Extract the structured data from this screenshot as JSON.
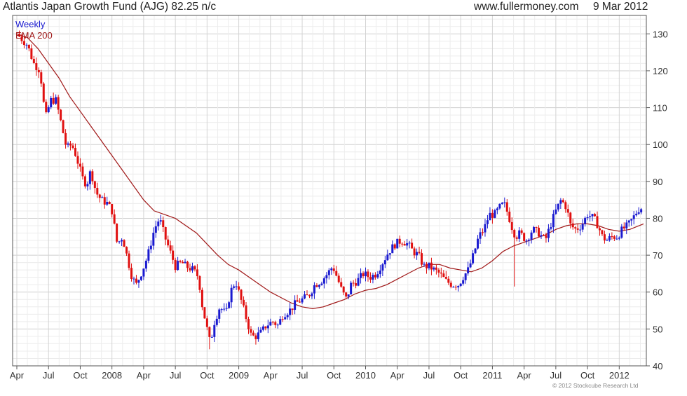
{
  "header": {
    "title": "Atlantis Japan Growth Fund (AJG) 82.25 n/c",
    "site": "www.fullermoney.com",
    "date": "9 Mar 2012"
  },
  "legend": {
    "weekly": "Weekly",
    "ema": "EMA 200"
  },
  "footer": {
    "copyright": "© 2012 Stockcube Research Ltd"
  },
  "colors": {
    "up": "#1a1ad0",
    "down": "#e01010",
    "ema": "#a01818",
    "grid": "#d8d8d8",
    "frame": "#555555"
  },
  "chart_data": {
    "type": "candlestick",
    "title": "Atlantis Japan Growth Fund (AJG) 82.25 n/c",
    "xlabel": "",
    "ylabel": "",
    "ylim": [
      40,
      135
    ],
    "grid": true,
    "legend_position": "top-left",
    "y_ticks": [
      40,
      50,
      60,
      70,
      80,
      90,
      100,
      110,
      120,
      130
    ],
    "x_ticks": [
      {
        "label": "Apr",
        "month": 0
      },
      {
        "label": "Jul",
        "month": 3
      },
      {
        "label": "Oct",
        "month": 6
      },
      {
        "label": "2008",
        "month": 9
      },
      {
        "label": "Apr",
        "month": 12
      },
      {
        "label": "Jul",
        "month": 15
      },
      {
        "label": "Oct",
        "month": 18
      },
      {
        "label": "2009",
        "month": 21
      },
      {
        "label": "Apr",
        "month": 24
      },
      {
        "label": "Jul",
        "month": 27
      },
      {
        "label": "Oct",
        "month": 30
      },
      {
        "label": "2010",
        "month": 33
      },
      {
        "label": "Apr",
        "month": 36
      },
      {
        "label": "Jul",
        "month": 39
      },
      {
        "label": "Oct",
        "month": 42
      },
      {
        "label": "2011",
        "month": 45
      },
      {
        "label": "Apr",
        "month": 48
      },
      {
        "label": "Jul",
        "month": 51
      },
      {
        "label": "Oct",
        "month": 54
      },
      {
        "label": "2012",
        "month": 57
      }
    ],
    "x_end_month": 59.3,
    "price_path_month_close": [
      [
        0,
        130
      ],
      [
        1,
        127
      ],
      [
        1.6,
        122
      ],
      [
        2.2,
        120
      ],
      [
        2.7,
        107
      ],
      [
        3.2,
        112
      ],
      [
        3.7,
        112
      ],
      [
        4.1,
        107
      ],
      [
        4.7,
        99
      ],
      [
        5.2,
        100
      ],
      [
        5.6,
        97
      ],
      [
        6.2,
        91
      ],
      [
        6.6,
        89
      ],
      [
        7.0,
        93
      ],
      [
        7.5,
        87
      ],
      [
        8.0,
        85
      ],
      [
        8.6,
        84
      ],
      [
        9.0,
        82
      ],
      [
        9.5,
        73
      ],
      [
        10.0,
        75
      ],
      [
        10.4,
        70
      ],
      [
        10.9,
        64
      ],
      [
        11.3,
        62
      ],
      [
        11.9,
        66
      ],
      [
        12.4,
        70
      ],
      [
        13.0,
        77
      ],
      [
        13.5,
        80
      ],
      [
        14.0,
        75
      ],
      [
        14.5,
        71
      ],
      [
        15.0,
        67
      ],
      [
        15.6,
        68
      ],
      [
        16.0,
        67
      ],
      [
        16.7,
        66
      ],
      [
        17.2,
        64
      ],
      [
        17.5,
        57
      ],
      [
        18.0,
        50
      ],
      [
        18.3,
        46
      ],
      [
        18.7,
        52
      ],
      [
        19.2,
        56
      ],
      [
        19.8,
        54
      ],
      [
        20.2,
        60
      ],
      [
        20.7,
        63
      ],
      [
        21.2,
        58
      ],
      [
        21.8,
        52
      ],
      [
        22.2,
        48
      ],
      [
        22.6,
        48
      ],
      [
        23.1,
        49
      ],
      [
        23.6,
        51
      ],
      [
        24.2,
        52
      ],
      [
        24.7,
        51
      ],
      [
        25.2,
        54
      ],
      [
        25.8,
        55
      ],
      [
        26.4,
        57
      ],
      [
        27.0,
        58
      ],
      [
        27.6,
        59
      ],
      [
        28.2,
        62
      ],
      [
        28.8,
        63
      ],
      [
        29.4,
        65
      ],
      [
        29.9,
        67
      ],
      [
        30.3,
        64
      ],
      [
        30.8,
        60
      ],
      [
        31.2,
        58
      ],
      [
        31.6,
        62
      ],
      [
        32.2,
        63
      ],
      [
        32.8,
        65
      ],
      [
        33.4,
        64
      ],
      [
        34.0,
        65
      ],
      [
        34.6,
        68
      ],
      [
        35.2,
        71
      ],
      [
        35.8,
        73
      ],
      [
        36.4,
        74
      ],
      [
        37.0,
        73
      ],
      [
        37.5,
        71
      ],
      [
        38.0,
        70
      ],
      [
        38.5,
        67
      ],
      [
        39.0,
        67
      ],
      [
        39.5,
        66
      ],
      [
        40.0,
        65
      ],
      [
        40.6,
        63
      ],
      [
        41.2,
        62
      ],
      [
        41.8,
        62
      ],
      [
        42.2,
        64
      ],
      [
        42.7,
        66
      ],
      [
        43.2,
        70
      ],
      [
        43.7,
        75
      ],
      [
        44.2,
        77
      ],
      [
        44.7,
        81
      ],
      [
        45.2,
        81
      ],
      [
        45.7,
        83
      ],
      [
        46.1,
        84
      ],
      [
        46.5,
        81
      ],
      [
        46.8,
        78
      ],
      [
        47.2,
        75
      ],
      [
        47.6,
        76
      ],
      [
        48.2,
        74
      ],
      [
        48.8,
        77
      ],
      [
        49.4,
        76
      ],
      [
        50.0,
        74
      ],
      [
        50.6,
        79
      ],
      [
        51.0,
        82
      ],
      [
        51.5,
        85
      ],
      [
        52.0,
        83
      ],
      [
        52.4,
        78
      ],
      [
        52.9,
        77
      ],
      [
        53.4,
        78
      ],
      [
        54.0,
        81
      ],
      [
        54.6,
        80
      ],
      [
        55.0,
        78
      ],
      [
        55.4,
        75
      ],
      [
        55.8,
        74
      ],
      [
        56.3,
        75
      ],
      [
        56.8,
        75
      ],
      [
        57.3,
        77
      ],
      [
        57.8,
        78
      ],
      [
        58.3,
        80
      ],
      [
        58.7,
        82
      ],
      [
        59.0,
        83
      ],
      [
        59.3,
        82.25
      ]
    ],
    "ema_path_month_value": [
      [
        0,
        130
      ],
      [
        1,
        129
      ],
      [
        2,
        126
      ],
      [
        3,
        122
      ],
      [
        4,
        118
      ],
      [
        5,
        113
      ],
      [
        6,
        109
      ],
      [
        7,
        105
      ],
      [
        8,
        101
      ],
      [
        9,
        97
      ],
      [
        10,
        93
      ],
      [
        11,
        89
      ],
      [
        12,
        85
      ],
      [
        13,
        82
      ],
      [
        14,
        81
      ],
      [
        15,
        80
      ],
      [
        16,
        78
      ],
      [
        17,
        76
      ],
      [
        18,
        73
      ],
      [
        19,
        70
      ],
      [
        20,
        67.5
      ],
      [
        21,
        66
      ],
      [
        22,
        64
      ],
      [
        23,
        62
      ],
      [
        24,
        60
      ],
      [
        25,
        58.5
      ],
      [
        26,
        57
      ],
      [
        27,
        56
      ],
      [
        28,
        55.5
      ],
      [
        29,
        56
      ],
      [
        30,
        57
      ],
      [
        31,
        58
      ],
      [
        32,
        59.5
      ],
      [
        33,
        60.5
      ],
      [
        34,
        61
      ],
      [
        35,
        62
      ],
      [
        36,
        63.5
      ],
      [
        37,
        65
      ],
      [
        38,
        66.5
      ],
      [
        39,
        67.5
      ],
      [
        40,
        67.5
      ],
      [
        41,
        66.5
      ],
      [
        42,
        66
      ],
      [
        43,
        65.5
      ],
      [
        44,
        66.5
      ],
      [
        45,
        68.5
      ],
      [
        46,
        71
      ],
      [
        47,
        72.5
      ],
      [
        48,
        73.5
      ],
      [
        49,
        74.5
      ],
      [
        50,
        75.5
      ],
      [
        51,
        77
      ],
      [
        52,
        78
      ],
      [
        53,
        78.5
      ],
      [
        54,
        78.5
      ],
      [
        55,
        78
      ],
      [
        56,
        77
      ],
      [
        57,
        76.5
      ],
      [
        58,
        77
      ],
      [
        59.3,
        78.5
      ]
    ],
    "notable_wicks": [
      {
        "month": 47.0,
        "low": 61.5,
        "high": 77
      },
      {
        "month": 18.3,
        "low": 44.5,
        "high": 50
      }
    ]
  }
}
